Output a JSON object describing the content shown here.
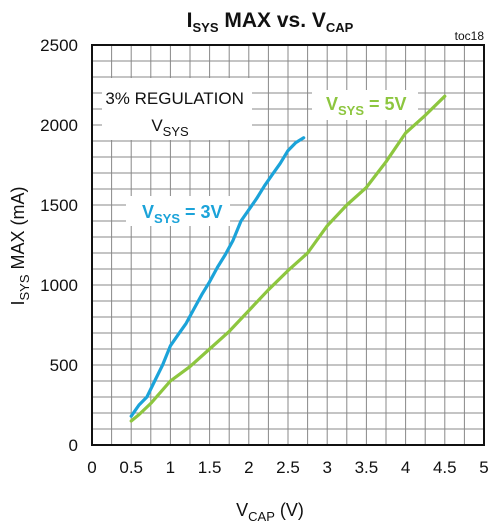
{
  "chart_data": {
    "type": "line",
    "title": {
      "pre": "I",
      "sub1": "SYS",
      "mid": " MAX vs. V",
      "sub2": "CAP"
    },
    "figure_code": "toc18",
    "xlabel": {
      "pre": "V",
      "sub": "CAP",
      "post": " (V)"
    },
    "ylabel": {
      "pre": "I",
      "sub": "SYS",
      "post": " MAX (mA)"
    },
    "xlim": [
      0,
      5
    ],
    "ylim": [
      0,
      2500
    ],
    "x_ticks": [
      "0",
      "0.5",
      "1",
      "1.5",
      "2",
      "2.5",
      "3",
      "3.5",
      "4",
      "4.5",
      "5"
    ],
    "y_ticks": [
      "0",
      "500",
      "1000",
      "1500",
      "2000",
      "2500"
    ],
    "grid": true,
    "annotation": {
      "line1": "3% REGULATION",
      "line2_pre": "V",
      "line2_sub": "SYS"
    },
    "series": [
      {
        "label_pre": "V",
        "label_sub": "SYS",
        "label_post": " = 3V",
        "color": "#1ba3d9",
        "x": [
          0.5,
          0.6,
          0.7,
          0.8,
          0.9,
          1.0,
          1.1,
          1.2,
          1.3,
          1.4,
          1.5,
          1.6,
          1.7,
          1.8,
          1.9,
          2.0,
          2.1,
          2.2,
          2.3,
          2.4,
          2.5,
          2.6,
          2.7
        ],
        "y": [
          180,
          250,
          300,
          400,
          500,
          620,
          690,
          760,
          850,
          940,
          1020,
          1110,
          1190,
          1280,
          1400,
          1470,
          1540,
          1620,
          1690,
          1760,
          1840,
          1890,
          1920
        ]
      },
      {
        "label_pre": "V",
        "label_sub": "SYS",
        "label_post": " = 5V",
        "color": "#8dc63f",
        "x": [
          0.5,
          0.6,
          0.75,
          1.0,
          1.25,
          1.5,
          1.75,
          2.0,
          2.25,
          2.5,
          2.75,
          3.0,
          3.25,
          3.5,
          3.75,
          4.0,
          4.25,
          4.5
        ],
        "y": [
          150,
          190,
          260,
          400,
          490,
          600,
          710,
          840,
          970,
          1090,
          1200,
          1370,
          1500,
          1610,
          1770,
          1950,
          2060,
          2180
        ]
      }
    ]
  }
}
